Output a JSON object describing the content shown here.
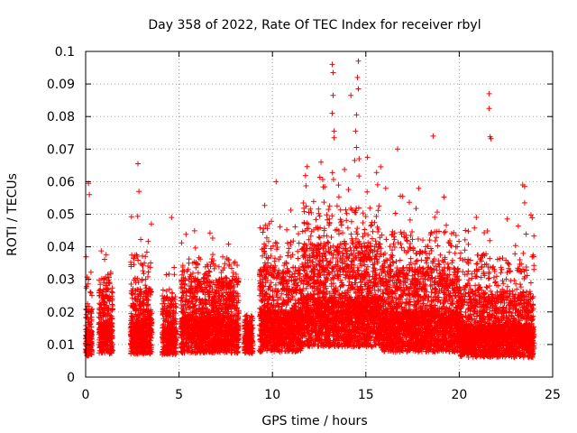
{
  "chart_data": {
    "type": "scatter",
    "title": "Day 358 of 2022, Rate Of TEC Index for receiver rbyl",
    "xlabel": "GPS time / hours",
    "ylabel": "ROTI / TECUs",
    "xlim": [
      0,
      25
    ],
    "ylim": [
      0,
      0.1
    ],
    "xticks": [
      0,
      5,
      10,
      15,
      20,
      25
    ],
    "xtick_labels": [
      "0",
      "5",
      "10",
      "15",
      "20",
      "25"
    ],
    "yticks": [
      0,
      0.01,
      0.02,
      0.03,
      0.04,
      0.05,
      0.06,
      0.07,
      0.08,
      0.09,
      0.1
    ],
    "ytick_labels": [
      "0",
      "0.01",
      "0.02",
      "0.03",
      "0.04",
      "0.05",
      "0.06",
      "0.07",
      "0.08",
      "0.09",
      "0.1"
    ],
    "grid": true,
    "marker": "+",
    "series": [
      {
        "name": "ROTI",
        "color": "#ff0000",
        "segments": [
          {
            "start": 0.0,
            "end": 0.35,
            "base": 0.01,
            "spread": 0.005,
            "maxv": 0.04
          },
          {
            "start": 0.7,
            "end": 1.45,
            "base": 0.012,
            "spread": 0.007,
            "maxv": 0.041
          },
          {
            "start": 2.4,
            "end": 3.55,
            "base": 0.012,
            "spread": 0.007,
            "maxv": 0.05
          },
          {
            "start": 4.1,
            "end": 4.85,
            "base": 0.011,
            "spread": 0.006,
            "maxv": 0.034
          },
          {
            "start": 5.1,
            "end": 8.2,
            "base": 0.013,
            "spread": 0.008,
            "maxv": 0.047
          },
          {
            "start": 8.5,
            "end": 8.95,
            "base": 0.01,
            "spread": 0.004,
            "maxv": 0.02
          },
          {
            "start": 9.3,
            "end": 11.6,
            "base": 0.014,
            "spread": 0.009,
            "maxv": 0.054
          },
          {
            "start": 11.6,
            "end": 15.8,
            "base": 0.017,
            "spread": 0.011,
            "maxv": 0.068
          },
          {
            "start": 15.8,
            "end": 20.0,
            "base": 0.014,
            "spread": 0.009,
            "maxv": 0.058
          },
          {
            "start": 20.0,
            "end": 24.0,
            "base": 0.011,
            "spread": 0.007,
            "maxv": 0.05
          }
        ],
        "outliers": [
          {
            "x": 0.15,
            "y": 0.0595
          },
          {
            "x": 0.2,
            "y": 0.056
          },
          {
            "x": 2.8,
            "y": 0.0655
          },
          {
            "x": 2.85,
            "y": 0.057
          },
          {
            "x": 4.6,
            "y": 0.049
          },
          {
            "x": 10.2,
            "y": 0.06
          },
          {
            "x": 12.6,
            "y": 0.066
          },
          {
            "x": 13.2,
            "y": 0.096
          },
          {
            "x": 13.25,
            "y": 0.0935
          },
          {
            "x": 13.25,
            "y": 0.0865
          },
          {
            "x": 13.2,
            "y": 0.081
          },
          {
            "x": 13.3,
            "y": 0.0755
          },
          {
            "x": 13.3,
            "y": 0.0735
          },
          {
            "x": 14.2,
            "y": 0.0865
          },
          {
            "x": 14.6,
            "y": 0.097
          },
          {
            "x": 14.55,
            "y": 0.092
          },
          {
            "x": 14.6,
            "y": 0.0885
          },
          {
            "x": 14.5,
            "y": 0.0805
          },
          {
            "x": 14.45,
            "y": 0.0755
          },
          {
            "x": 14.5,
            "y": 0.0705
          },
          {
            "x": 14.4,
            "y": 0.0665
          },
          {
            "x": 16.7,
            "y": 0.07
          },
          {
            "x": 18.6,
            "y": 0.074
          },
          {
            "x": 21.6,
            "y": 0.087
          },
          {
            "x": 21.6,
            "y": 0.0825
          },
          {
            "x": 21.65,
            "y": 0.0738
          },
          {
            "x": 21.7,
            "y": 0.0732
          },
          {
            "x": 23.4,
            "y": 0.059
          },
          {
            "x": 23.5,
            "y": 0.0585
          },
          {
            "x": 23.5,
            "y": 0.0535
          }
        ]
      }
    ]
  }
}
